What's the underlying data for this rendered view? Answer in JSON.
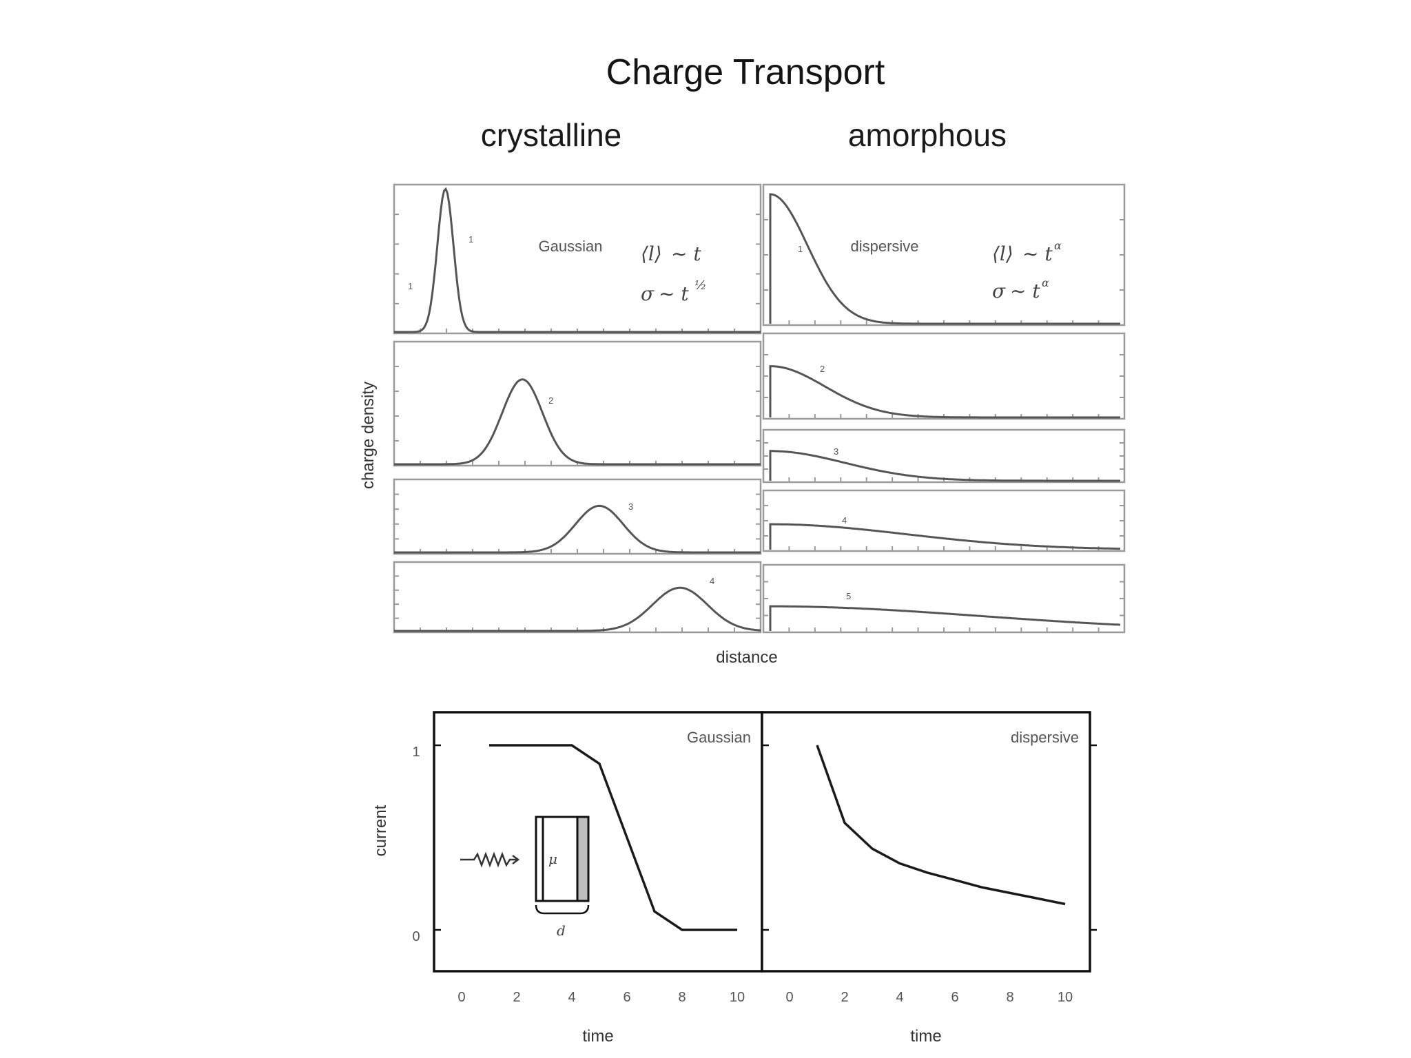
{
  "title": "Charge Transport",
  "columns": {
    "left": "crystalline",
    "right": "amorphous"
  },
  "top_axes": {
    "ylabel": "charge density",
    "xlabel": "distance"
  },
  "left_panels": {
    "label": "Gaussian",
    "eq1_lhs": "⟨l⟩",
    "eq1_rhs": "~ t",
    "eq2_lhs": "σ",
    "eq2_rhs": "~ t",
    "eq2_exp": "½",
    "curve_labels": [
      "1",
      "2",
      "3",
      "4"
    ],
    "side_marks": [
      "1",
      "",
      "",
      ""
    ]
  },
  "right_panels": {
    "label": "dispersive",
    "eq1_lhs": "⟨l⟩",
    "eq1_rhs": "~ t",
    "eq1_exp": "α",
    "eq2_lhs": "σ",
    "eq2_rhs": "~ t",
    "eq2_exp": "α",
    "curve_labels": [
      "1",
      "2",
      "3",
      "4",
      "5"
    ]
  },
  "current_axes": {
    "ylabel": "current",
    "xlabel_left": "time",
    "xlabel_right": "time",
    "yticks": [
      "1",
      "0"
    ],
    "xticks": [
      "0",
      "2",
      "4",
      "6",
      "8",
      "10"
    ],
    "label_left": "Gaussian",
    "label_right": "dispersive",
    "inset_label": "μ",
    "inset_dim": "d"
  },
  "chart_data": [
    {
      "type": "line",
      "title": "",
      "xlabel": "time",
      "ylabel": "current",
      "xlim": [
        0,
        10
      ],
      "ylim": [
        0,
        1
      ],
      "grid": false,
      "series": [
        {
          "name": "Gaussian",
          "x": [
            1,
            4,
            5,
            7,
            8,
            10
          ],
          "y": [
            1,
            1,
            0.9,
            0.1,
            0,
            0
          ]
        }
      ]
    },
    {
      "type": "line",
      "title": "",
      "xlabel": "time",
      "ylabel": "current",
      "xlim": [
        0,
        10
      ],
      "ylim": [
        0,
        1
      ],
      "grid": false,
      "series": [
        {
          "name": "dispersive",
          "x": [
            1,
            2,
            3,
            4,
            5,
            6,
            7,
            8,
            9,
            10
          ],
          "y": [
            1,
            0.58,
            0.44,
            0.36,
            0.31,
            0.27,
            0.23,
            0.2,
            0.17,
            0.14
          ]
        }
      ]
    }
  ]
}
